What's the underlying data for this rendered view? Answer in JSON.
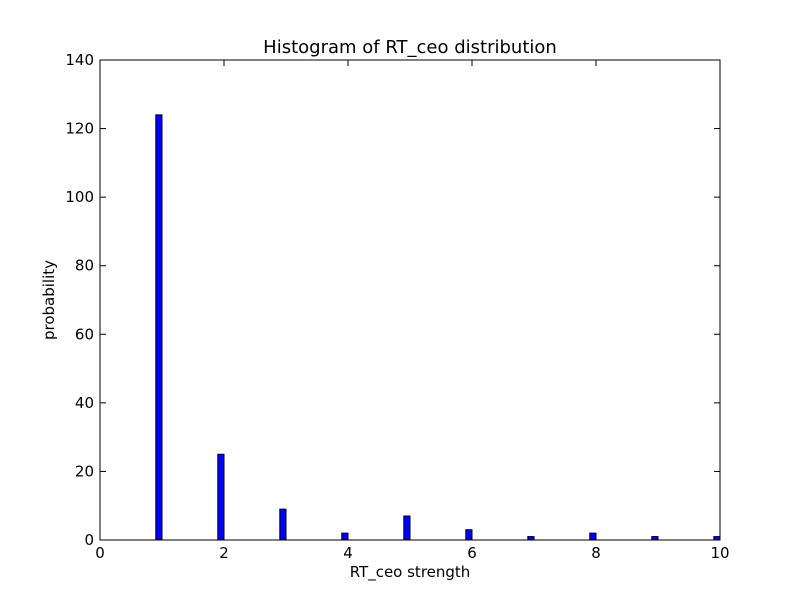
{
  "chart_data": {
    "type": "bar",
    "title": "Histogram of RT_ceo  distribution",
    "xlabel": "RT_ceo  strength",
    "ylabel": "probability",
    "xlim": [
      0,
      10
    ],
    "ylim": [
      0,
      140
    ],
    "x_ticks": [
      "0",
      "2",
      "4",
      "6",
      "8",
      "10"
    ],
    "y_ticks": [
      "0",
      "20",
      "40",
      "60",
      "80",
      "100",
      "120",
      "140"
    ],
    "bar_color": "#0000ff",
    "grid": false,
    "legend": "none",
    "bars": [
      {
        "x": 1,
        "value": 124
      },
      {
        "x": 2,
        "value": 25
      },
      {
        "x": 3,
        "value": 9
      },
      {
        "x": 4,
        "value": 2
      },
      {
        "x": 5,
        "value": 7
      },
      {
        "x": 6,
        "value": 3
      },
      {
        "x": 7,
        "value": 1
      },
      {
        "x": 8,
        "value": 2
      },
      {
        "x": 9,
        "value": 1
      },
      {
        "x": 10,
        "value": 1
      }
    ]
  }
}
